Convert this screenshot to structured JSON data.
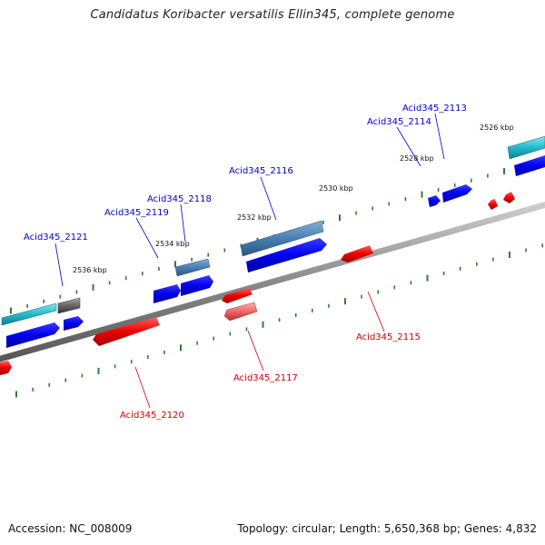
{
  "title": "Candidatus Koribacter versatilis Ellin345, complete genome",
  "footer": {
    "accession": "Accession: NC_008009",
    "summary": "Topology: circular; Length: 5,650,368 bp; Genes: 4,832"
  },
  "colors": {
    "forward_gene": "#0000ee",
    "reverse_gene": "#ee0000",
    "forward_label": "#0000cc",
    "reverse_label": "#cc0000",
    "tick": "#2e7d32",
    "backbone": "#888888",
    "highlight_cyan": "#33bbcc",
    "highlight_steel": "#4a7fb0",
    "gray_gene": "#666666",
    "pink_gene": "#ee6666"
  },
  "scale_labels": [
    "2536 kbp",
    "2534 kbp",
    "2532 kbp",
    "2530 kbp",
    "2528 kbp",
    "2526 kbp"
  ],
  "gene_labels": {
    "forward": [
      "Acid345_2121",
      "Acid345_2119",
      "Acid345_2118",
      "Acid345_2116",
      "Acid345_2114",
      "Acid345_2113"
    ],
    "reverse": [
      "Acid345_2120",
      "Acid345_2117",
      "Acid345_2115"
    ]
  }
}
